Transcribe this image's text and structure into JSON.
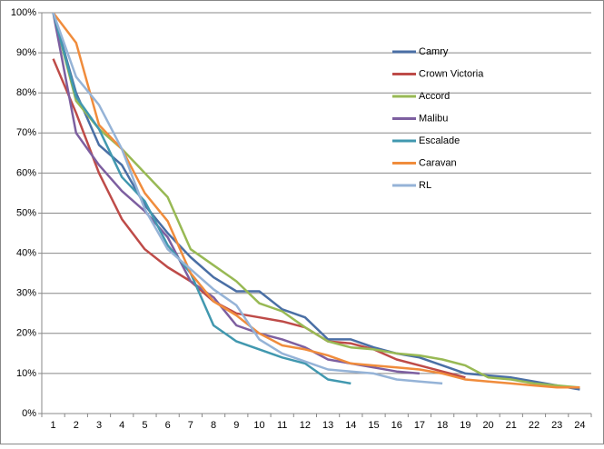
{
  "chart_data": {
    "type": "line",
    "categories": [
      1,
      2,
      3,
      4,
      5,
      6,
      7,
      8,
      9,
      10,
      11,
      12,
      13,
      14,
      15,
      16,
      17,
      18,
      19,
      20,
      21,
      22,
      23,
      24
    ],
    "ylim": [
      0,
      100
    ],
    "yticks": [
      {
        "value": 0,
        "label": "0%"
      },
      {
        "value": 10,
        "label": "10%"
      },
      {
        "value": 20,
        "label": "20%"
      },
      {
        "value": 30,
        "label": "30%"
      },
      {
        "value": 40,
        "label": "40%"
      },
      {
        "value": 50,
        "label": "50%"
      },
      {
        "value": 60,
        "label": "60%"
      },
      {
        "value": 70,
        "label": "70%"
      },
      {
        "value": 80,
        "label": "80%"
      },
      {
        "value": 90,
        "label": "90%"
      },
      {
        "value": 100,
        "label": "100%"
      }
    ],
    "grid": true,
    "series": [
      {
        "name": "Camry",
        "color": "#4a6fa5",
        "values": [
          100,
          80,
          67,
          62,
          52,
          45,
          39,
          34,
          30.5,
          30.5,
          26,
          24,
          18.5,
          18.5,
          16.5,
          15,
          14,
          12,
          10,
          9.5,
          9,
          8,
          7,
          6
        ]
      },
      {
        "name": "Crown Victoria",
        "color": "#be4b48",
        "values": [
          88.5,
          75,
          60,
          48.5,
          41,
          36.5,
          33,
          28,
          25,
          24,
          23,
          21.5,
          18,
          17.5,
          16,
          13.5,
          12,
          10.5,
          9,
          null,
          null,
          null,
          null,
          null
        ]
      },
      {
        "name": "Accord",
        "color": "#98b954",
        "values": [
          100,
          78,
          71,
          66,
          60,
          54,
          41,
          37,
          33,
          27.5,
          25.5,
          21.5,
          18,
          16.5,
          16,
          15,
          14.5,
          13.5,
          12,
          9,
          8.5,
          7.5,
          7,
          6.5
        ]
      },
      {
        "name": "Malibu",
        "color": "#7d5fa0",
        "values": [
          100,
          70,
          62,
          55.5,
          50.5,
          44,
          33,
          29,
          22,
          20,
          18.5,
          16.5,
          13.5,
          12.5,
          11.5,
          10.5,
          10,
          null,
          null,
          null,
          null,
          null,
          null,
          null
        ]
      },
      {
        "name": "Escalade",
        "color": "#4198af",
        "values": [
          100,
          79,
          71,
          59,
          53,
          42,
          35,
          22,
          18,
          16,
          14,
          12.5,
          8.5,
          7.5,
          null,
          null,
          null,
          null,
          null,
          null,
          null,
          null,
          null,
          null
        ]
      },
      {
        "name": "Caravan",
        "color": "#f08c3c",
        "values": [
          100,
          92.5,
          72,
          66,
          55,
          48,
          35,
          28,
          24.5,
          20,
          17,
          16,
          14.5,
          12.5,
          12,
          11.5,
          11,
          10,
          8.5,
          8,
          7.5,
          7,
          6.5,
          6.5
        ]
      },
      {
        "name": "RL",
        "color": "#95b3d7",
        "values": [
          100,
          84,
          77,
          66,
          51,
          41,
          36,
          31,
          27,
          18.5,
          15,
          13,
          11,
          10.5,
          10,
          8.5,
          8,
          7.5,
          null,
          null,
          null,
          null,
          null,
          null
        ]
      }
    ]
  }
}
